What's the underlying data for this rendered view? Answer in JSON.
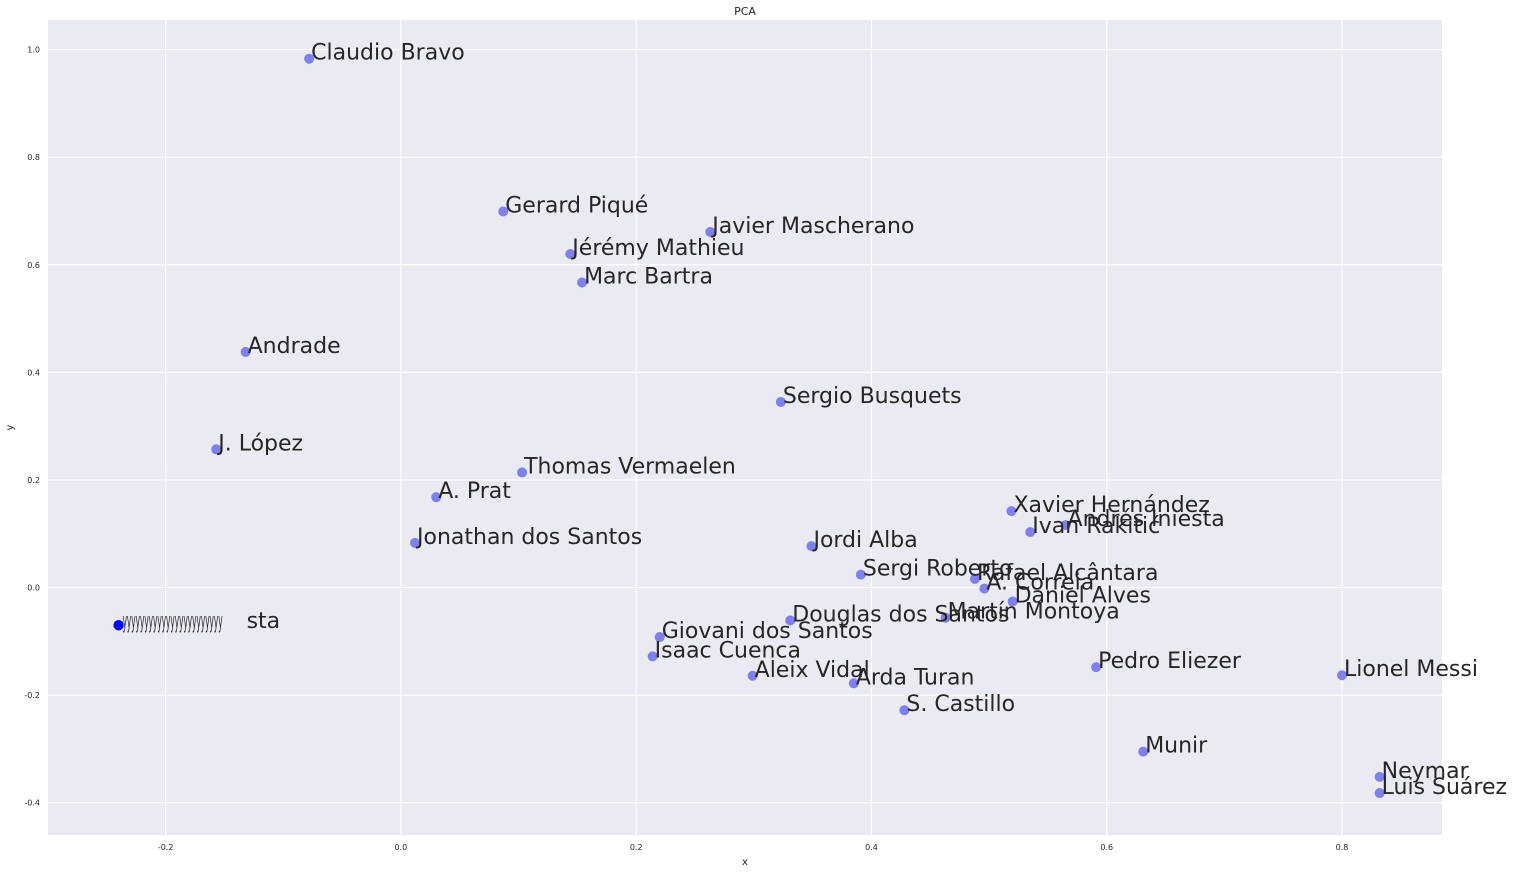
{
  "chart_data": {
    "type": "scatter",
    "title": "PCA",
    "xlabel": "x",
    "ylabel": "y",
    "xlim": [
      -0.3,
      0.885
    ],
    "ylim": [
      -0.46,
      1.055
    ],
    "grid": true,
    "xticks": [
      -0.2,
      0.0,
      0.2,
      0.4,
      0.6,
      0.8
    ],
    "xtick_labels": [
      "-0.2",
      "0.0",
      "0.2",
      "0.4",
      "0.6",
      "0.8"
    ],
    "yticks": [
      -0.4,
      -0.2,
      0.0,
      0.2,
      0.4,
      0.6,
      0.8,
      1.0
    ],
    "ytick_labels": [
      "-0.4",
      "-0.2",
      "0.0",
      "0.2",
      "0.4",
      "0.6",
      "0.8",
      "1.0"
    ],
    "point_color": "#6a6ee8",
    "cluster_color": "#0000ff",
    "points": [
      {
        "label": "Claudio Bravo",
        "x": -0.078,
        "y": 0.983
      },
      {
        "label": "Gerard Piqué",
        "x": 0.087,
        "y": 0.699
      },
      {
        "label": "Javier Mascherano",
        "x": 0.263,
        "y": 0.661
      },
      {
        "label": "Jérémy Mathieu",
        "x": 0.144,
        "y": 0.62
      },
      {
        "label": "Marc Bartra",
        "x": 0.154,
        "y": 0.567
      },
      {
        "label": "Andrade",
        "x": -0.132,
        "y": 0.438
      },
      {
        "label": "Sergio Busquets",
        "x": 0.323,
        "y": 0.345
      },
      {
        "label": "J. López",
        "x": -0.157,
        "y": 0.257
      },
      {
        "label": "Thomas Vermaelen",
        "x": 0.103,
        "y": 0.214
      },
      {
        "label": "A. Prat",
        "x": 0.03,
        "y": 0.168
      },
      {
        "label": "Xavier Hernández",
        "x": 0.519,
        "y": 0.142
      },
      {
        "label": "Andrés Iniesta",
        "x": 0.565,
        "y": 0.116
      },
      {
        "label": "Ivan Rakitić",
        "x": 0.535,
        "y": 0.103
      },
      {
        "label": "Jonathan dos Santos",
        "x": 0.012,
        "y": 0.083
      },
      {
        "label": "Jordi Alba",
        "x": 0.349,
        "y": 0.077
      },
      {
        "label": "Sergi Roberto",
        "x": 0.391,
        "y": 0.024
      },
      {
        "label": "Rafael Alcântara",
        "x": 0.488,
        "y": 0.016
      },
      {
        "label": "A. Correia",
        "x": 0.496,
        "y": -0.002
      },
      {
        "label": "Daniel Alves",
        "x": 0.52,
        "y": -0.026
      },
      {
        "label": "Martín Montoya",
        "x": 0.463,
        "y": -0.056
      },
      {
        "label": "Douglas dos Santos",
        "x": 0.331,
        "y": -0.061
      },
      {
        "label": "Giovani dos Santos",
        "x": 0.22,
        "y": -0.092
      },
      {
        "label": "Isaac Cuenca",
        "x": 0.214,
        "y": -0.128
      },
      {
        "label": "Pedro Eliezer",
        "x": 0.591,
        "y": -0.148
      },
      {
        "label": "Lionel Messi",
        "x": 0.8,
        "y": -0.163
      },
      {
        "label": "Aleix Vidal",
        "x": 0.299,
        "y": -0.164
      },
      {
        "label": "Arda Turan",
        "x": 0.385,
        "y": -0.178
      },
      {
        "label": "S. Castillo",
        "x": 0.428,
        "y": -0.228
      },
      {
        "label": "Munir",
        "x": 0.631,
        "y": -0.305
      },
      {
        "label": "Neymar",
        "x": 0.832,
        "y": -0.352
      },
      {
        "label": "Luis Suárez",
        "x": 0.832,
        "y": -0.382
      }
    ],
    "cluster": {
      "x": -0.24,
      "y": -0.07,
      "overlapping_labels": [
        "yyyyyyyyyyyyyyyyyyyyyyy",
        "sta"
      ]
    }
  }
}
